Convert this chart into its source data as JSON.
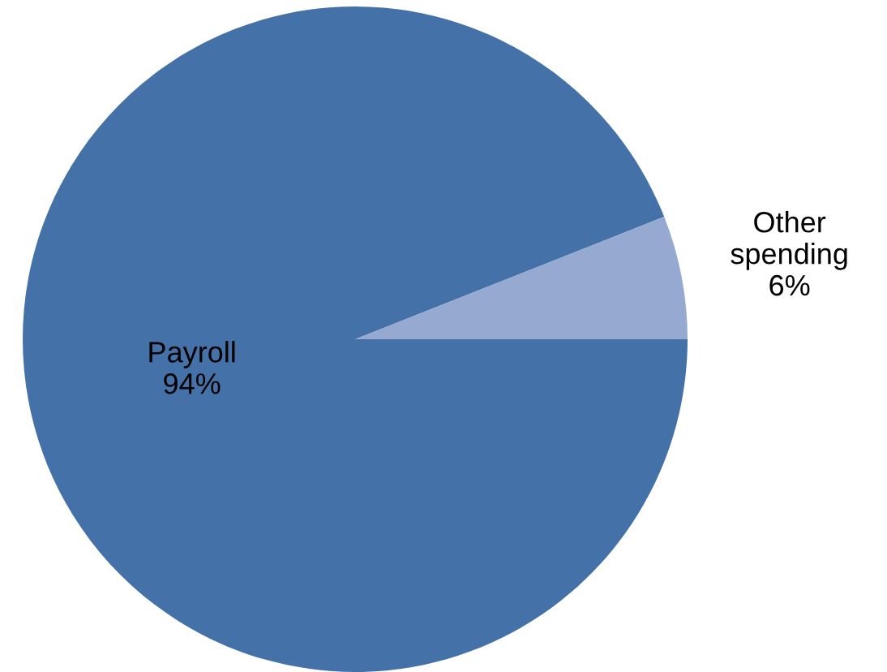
{
  "chart_data": {
    "type": "pie",
    "categories": [
      "Payroll",
      "Other spending"
    ],
    "values": [
      94,
      6
    ],
    "value_labels": [
      "94%",
      "6%"
    ],
    "colors": [
      "#4472a8",
      "#95a9d1"
    ],
    "legend": false
  }
}
